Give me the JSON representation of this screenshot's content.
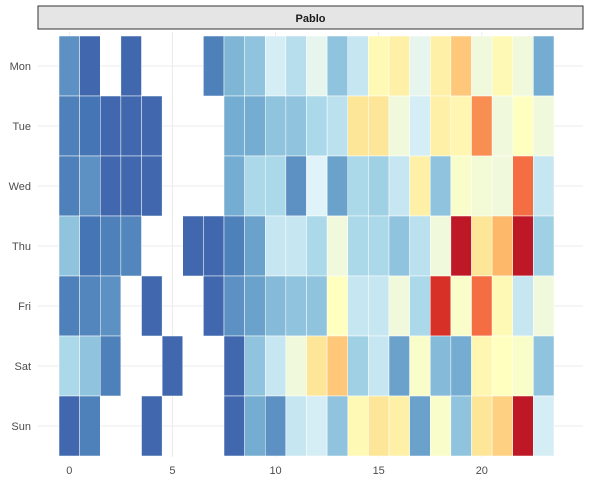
{
  "chart_data": {
    "type": "heatmap",
    "facet_label": "Pablo",
    "title": "",
    "xlabel": "",
    "ylabel": "",
    "x_ticks": [
      0,
      5,
      10,
      15,
      20
    ],
    "xlim": [
      -0.5,
      23.5
    ],
    "rows": [
      "Mon",
      "Tue",
      "Wed",
      "Thu",
      "Fri",
      "Sat",
      "Sun"
    ],
    "hours": [
      0,
      1,
      2,
      3,
      4,
      5,
      6,
      7,
      8,
      9,
      10,
      11,
      12,
      13,
      14,
      15,
      16,
      17,
      18,
      19,
      20,
      21,
      22,
      23
    ],
    "grid": true,
    "legend": "none",
    "color_scale": [
      "#313695",
      "#4575b4",
      "#74add1",
      "#abd9e9",
      "#e0f3f8",
      "#ffffbf",
      "#fee090",
      "#fdae61",
      "#f46d43",
      "#d73027",
      "#a50026"
    ],
    "values_scale": "0 (blue) to 10 (red), approximate intensity levels",
    "values": [
      [
        1.5,
        0.8,
        null,
        0.8,
        null,
        null,
        null,
        1.2,
        2.2,
        2.5,
        3.8,
        3.2,
        4.2,
        2.5,
        3.5,
        5.2,
        5.5,
        4.2,
        5.5,
        6.5,
        4.5,
        5.2,
        4.5,
        2.0
      ],
      [
        1.2,
        1.0,
        0.8,
        0.8,
        0.8,
        null,
        null,
        null,
        2.0,
        2.0,
        2.5,
        2.5,
        3.0,
        3.3,
        5.8,
        5.8,
        4.5,
        3.8,
        5.5,
        5.3,
        7.5,
        4.5,
        5.0,
        4.5
      ],
      [
        1.2,
        1.5,
        0.8,
        0.8,
        0.8,
        null,
        null,
        null,
        2.0,
        3.0,
        3.0,
        1.5,
        4.0,
        1.8,
        3.0,
        2.8,
        3.5,
        5.5,
        2.5,
        4.8,
        4.6,
        4.5,
        8.0,
        3.5
      ],
      [
        2.5,
        1.0,
        1.2,
        1.3,
        null,
        null,
        0.8,
        0.8,
        1.2,
        1.8,
        3.5,
        3.5,
        3.0,
        4.5,
        3.0,
        3.0,
        2.5,
        3.3,
        4.5,
        9.5,
        5.8,
        6.8,
        9.5,
        2.8
      ],
      [
        1.2,
        1.3,
        1.5,
        null,
        0.8,
        null,
        null,
        0.8,
        1.5,
        1.8,
        2.3,
        2.5,
        2.5,
        5.0,
        3.5,
        3.5,
        4.5,
        3.0,
        9.0,
        4.8,
        8.0,
        5.2,
        3.5,
        4.5
      ],
      [
        3.0,
        2.5,
        1.2,
        null,
        null,
        0.8,
        null,
        null,
        0.8,
        2.5,
        3.5,
        4.5,
        5.8,
        6.5,
        2.8,
        3.5,
        1.8,
        4.8,
        2.3,
        2.0,
        5.3,
        5.0,
        4.8,
        2.5
      ],
      [
        0.8,
        1.2,
        null,
        null,
        0.8,
        null,
        null,
        null,
        0.8,
        2.0,
        1.5,
        3.5,
        3.8,
        2.5,
        5.2,
        5.8,
        5.5,
        1.8,
        4.8,
        2.5,
        5.8,
        6.3,
        9.5,
        3.8
      ]
    ]
  }
}
